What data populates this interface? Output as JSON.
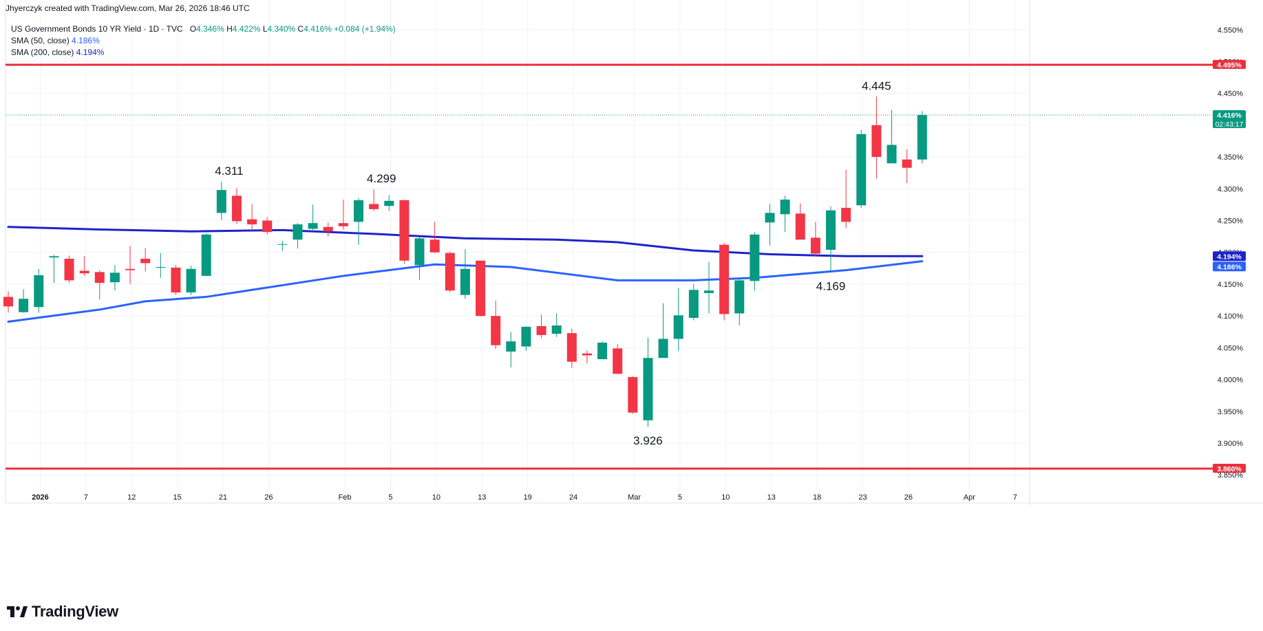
{
  "header": {
    "credit": "Jhyerczyk created with TradingView.com, Mar 26, 2026 18:46 UTC"
  },
  "legend": {
    "symbol": "US Government Bonds 10 YR Yield · 1D · TVC",
    "o_label": "O",
    "o_value": "4.346%",
    "h_label": "H",
    "h_value": "4.422%",
    "l_label": "L",
    "l_value": "4.340%",
    "c_label": "C",
    "c_value": "4.416%",
    "change": "+0.084 (+1.94%)",
    "sma50_label": "SMA (50, close)",
    "sma50_value": "4.186%",
    "sma200_label": "SMA (200, close)",
    "sma200_value": "4.194%"
  },
  "logo": {
    "icon": "tradingview-logo-icon",
    "text": "TradingView"
  },
  "colors": {
    "up": "#089981",
    "down": "#f23645",
    "sma50": "#2962ff",
    "sma200": "#1e22c8",
    "hline": "#e8303d",
    "grid": "#f0f3fa",
    "axis_text": "#131722"
  },
  "chart_data": {
    "type": "candlestick",
    "y_unit": "%",
    "ylim": [
      3.834,
      4.573
    ],
    "y_ticks": [
      "3.850%",
      "3.900%",
      "3.950%",
      "4.000%",
      "4.050%",
      "4.100%",
      "4.150%",
      "4.200%",
      "4.250%",
      "4.300%",
      "4.350%",
      "4.400%",
      "4.450%",
      "4.500%",
      "4.550%"
    ],
    "x_ticks": [
      {
        "i": 2.1,
        "label": "2026",
        "bold": true
      },
      {
        "i": 5.1,
        "label": "7"
      },
      {
        "i": 8.1,
        "label": "12"
      },
      {
        "i": 11.1,
        "label": "15"
      },
      {
        "i": 14.1,
        "label": "21"
      },
      {
        "i": 17.1,
        "label": "26"
      },
      {
        "i": 22.1,
        "label": "Feb"
      },
      {
        "i": 25.1,
        "label": "5"
      },
      {
        "i": 28.1,
        "label": "10"
      },
      {
        "i": 31.1,
        "label": "13"
      },
      {
        "i": 34.1,
        "label": "19"
      },
      {
        "i": 37.1,
        "label": "24"
      },
      {
        "i": 41.1,
        "label": "Mar"
      },
      {
        "i": 44.1,
        "label": "5"
      },
      {
        "i": 47.1,
        "label": "10"
      },
      {
        "i": 50.1,
        "label": "13"
      },
      {
        "i": 53.1,
        "label": "18"
      },
      {
        "i": 56.1,
        "label": "23"
      },
      {
        "i": 59.1,
        "label": "26"
      },
      {
        "i": 63.1,
        "label": "Apr"
      },
      {
        "i": 66.1,
        "label": "7"
      }
    ],
    "candles": [
      {
        "o": 4.13,
        "h": 4.139,
        "l": 4.105,
        "c": 4.115
      },
      {
        "o": 4.106,
        "h": 4.142,
        "l": 4.105,
        "c": 4.127
      },
      {
        "o": 4.114,
        "h": 4.174,
        "l": 4.105,
        "c": 4.164
      },
      {
        "o": 4.192,
        "h": 4.196,
        "l": 4.152,
        "c": 4.194
      },
      {
        "o": 4.19,
        "h": 4.195,
        "l": 4.152,
        "c": 4.156
      },
      {
        "o": 4.171,
        "h": 4.194,
        "l": 4.163,
        "c": 4.167
      },
      {
        "o": 4.169,
        "h": 4.172,
        "l": 4.126,
        "c": 4.152
      },
      {
        "o": 4.153,
        "h": 4.18,
        "l": 4.14,
        "c": 4.168
      },
      {
        "o": 4.174,
        "h": 4.21,
        "l": 4.15,
        "c": 4.172
      },
      {
        "o": 4.19,
        "h": 4.207,
        "l": 4.17,
        "c": 4.183
      },
      {
        "o": 4.177,
        "h": 4.199,
        "l": 4.16,
        "c": 4.177
      },
      {
        "o": 4.176,
        "h": 4.18,
        "l": 4.133,
        "c": 4.137
      },
      {
        "o": 4.137,
        "h": 4.179,
        "l": 4.133,
        "c": 4.174
      },
      {
        "o": 4.163,
        "h": 4.23,
        "l": 4.163,
        "c": 4.228
      },
      {
        "o": 4.262,
        "h": 4.311,
        "l": 4.251,
        "c": 4.298
      },
      {
        "o": 4.289,
        "h": 4.301,
        "l": 4.245,
        "c": 4.249
      },
      {
        "o": 4.252,
        "h": 4.276,
        "l": 4.234,
        "c": 4.244
      },
      {
        "o": 4.25,
        "h": 4.256,
        "l": 4.228,
        "c": 4.232
      },
      {
        "o": 4.213,
        "h": 4.218,
        "l": 4.202,
        "c": 4.213
      },
      {
        "o": 4.22,
        "h": 4.246,
        "l": 4.206,
        "c": 4.244
      },
      {
        "o": 4.237,
        "h": 4.275,
        "l": 4.233,
        "c": 4.246
      },
      {
        "o": 4.24,
        "h": 4.247,
        "l": 4.225,
        "c": 4.233
      },
      {
        "o": 4.246,
        "h": 4.283,
        "l": 4.236,
        "c": 4.241
      },
      {
        "o": 4.248,
        "h": 4.285,
        "l": 4.212,
        "c": 4.282
      },
      {
        "o": 4.276,
        "h": 4.299,
        "l": 4.265,
        "c": 4.268
      },
      {
        "o": 4.273,
        "h": 4.29,
        "l": 4.265,
        "c": 4.281
      },
      {
        "o": 4.282,
        "h": 4.283,
        "l": 4.182,
        "c": 4.187
      },
      {
        "o": 4.18,
        "h": 4.224,
        "l": 4.157,
        "c": 4.222
      },
      {
        "o": 4.22,
        "h": 4.248,
        "l": 4.199,
        "c": 4.2
      },
      {
        "o": 4.199,
        "h": 4.201,
        "l": 4.137,
        "c": 4.14
      },
      {
        "o": 4.133,
        "h": 4.205,
        "l": 4.127,
        "c": 4.174
      },
      {
        "o": 4.187,
        "h": 4.187,
        "l": 4.099,
        "c": 4.1
      },
      {
        "o": 4.1,
        "h": 4.124,
        "l": 4.048,
        "c": 4.054
      },
      {
        "o": 4.044,
        "h": 4.075,
        "l": 4.019,
        "c": 4.06
      },
      {
        "o": 4.052,
        "h": 4.084,
        "l": 4.045,
        "c": 4.083
      },
      {
        "o": 4.084,
        "h": 4.102,
        "l": 4.065,
        "c": 4.07
      },
      {
        "o": 4.072,
        "h": 4.104,
        "l": 4.067,
        "c": 4.085
      },
      {
        "o": 4.073,
        "h": 4.08,
        "l": 4.018,
        "c": 4.028
      },
      {
        "o": 4.041,
        "h": 4.046,
        "l": 4.025,
        "c": 4.038
      },
      {
        "o": 4.032,
        "h": 4.06,
        "l": 4.032,
        "c": 4.058
      },
      {
        "o": 4.049,
        "h": 4.056,
        "l": 4.009,
        "c": 4.009
      },
      {
        "o": 4.004,
        "h": 4.005,
        "l": 3.946,
        "c": 3.948
      },
      {
        "o": 3.936,
        "h": 4.066,
        "l": 3.926,
        "c": 4.034
      },
      {
        "o": 4.034,
        "h": 4.12,
        "l": 4.034,
        "c": 4.064
      },
      {
        "o": 4.064,
        "h": 4.144,
        "l": 4.045,
        "c": 4.101
      },
      {
        "o": 4.097,
        "h": 4.15,
        "l": 4.093,
        "c": 4.141
      },
      {
        "o": 4.136,
        "h": 4.185,
        "l": 4.104,
        "c": 4.14
      },
      {
        "o": 4.212,
        "h": 4.215,
        "l": 4.093,
        "c": 4.103
      },
      {
        "o": 4.104,
        "h": 4.16,
        "l": 4.085,
        "c": 4.156
      },
      {
        "o": 4.155,
        "h": 4.232,
        "l": 4.14,
        "c": 4.228
      },
      {
        "o": 4.247,
        "h": 4.276,
        "l": 4.211,
        "c": 4.262
      },
      {
        "o": 4.26,
        "h": 4.289,
        "l": 4.232,
        "c": 4.283
      },
      {
        "o": 4.261,
        "h": 4.277,
        "l": 4.222,
        "c": 4.22
      },
      {
        "o": 4.223,
        "h": 4.248,
        "l": 4.194,
        "c": 4.198
      },
      {
        "o": 4.204,
        "h": 4.272,
        "l": 4.169,
        "c": 4.266
      },
      {
        "o": 4.27,
        "h": 4.33,
        "l": 4.238,
        "c": 4.248
      },
      {
        "o": 4.274,
        "h": 4.393,
        "l": 4.27,
        "c": 4.386
      },
      {
        "o": 4.4,
        "h": 4.445,
        "l": 4.316,
        "c": 4.35
      },
      {
        "o": 4.34,
        "h": 4.424,
        "l": 4.34,
        "c": 4.369
      },
      {
        "o": 4.346,
        "h": 4.362,
        "l": 4.309,
        "c": 4.333
      },
      {
        "o": 4.346,
        "h": 4.422,
        "l": 4.34,
        "c": 4.416
      }
    ],
    "series": [
      {
        "name": "SMA (50, close)",
        "x": [
          0,
          6,
          9,
          13,
          16,
          22,
          28,
          33,
          40,
          45,
          49,
          55,
          60
        ],
        "values": [
          4.091,
          4.11,
          4.123,
          4.13,
          4.141,
          4.163,
          4.181,
          4.177,
          4.156,
          4.156,
          4.16,
          4.172,
          4.186
        ]
      },
      {
        "name": "SMA (200, close)",
        "x": [
          0,
          6,
          12,
          18,
          24,
          30,
          36,
          40,
          45,
          50,
          55,
          60
        ],
        "values": [
          4.24,
          4.236,
          4.233,
          4.235,
          4.229,
          4.222,
          4.22,
          4.216,
          4.203,
          4.197,
          4.194,
          4.194
        ]
      }
    ],
    "hlines": [
      {
        "value": 4.495,
        "label": "4.495%"
      },
      {
        "value": 3.86,
        "label": "3.860%"
      }
    ],
    "price_line": {
      "value": 4.416,
      "label": "4.416%",
      "countdown": "02:43:17"
    },
    "sma_tags": [
      {
        "value": 4.194,
        "label": "4.194%"
      },
      {
        "value": 4.186,
        "label": "4.186%"
      }
    ],
    "annotations": [
      {
        "i": 14.5,
        "value": 4.311,
        "label": "4.311",
        "pos": "above"
      },
      {
        "i": 24.5,
        "value": 4.299,
        "label": "4.299",
        "pos": "above"
      },
      {
        "i": 42.0,
        "value": 3.926,
        "label": "3.926",
        "pos": "below"
      },
      {
        "i": 54.0,
        "value": 4.169,
        "label": "4.169",
        "pos": "below"
      },
      {
        "i": 57.0,
        "value": 4.445,
        "label": "4.445",
        "pos": "above"
      }
    ]
  }
}
